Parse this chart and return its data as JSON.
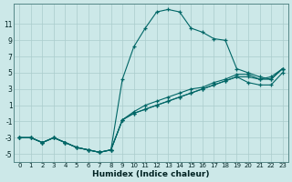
{
  "xlabel": "Humidex (Indice chaleur)",
  "bg_color": "#cce8e8",
  "grid_color": "#aacccc",
  "line_color": "#006666",
  "xlim": [
    -0.5,
    23.5
  ],
  "ylim": [
    -6,
    13.5
  ],
  "xticks": [
    0,
    1,
    2,
    3,
    4,
    5,
    6,
    7,
    8,
    9,
    10,
    11,
    12,
    13,
    14,
    15,
    16,
    17,
    18,
    19,
    20,
    21,
    22,
    23
  ],
  "yticks": [
    -5,
    -3,
    -1,
    1,
    3,
    5,
    7,
    9,
    11
  ],
  "line1": [
    [
      0,
      -3
    ],
    [
      1,
      -3
    ],
    [
      2,
      -3.6
    ],
    [
      3,
      -3
    ],
    [
      4,
      -3.6
    ],
    [
      5,
      -4.2
    ],
    [
      6,
      -4.5
    ],
    [
      7,
      -4.8
    ],
    [
      8,
      -4.5
    ],
    [
      9,
      4.2
    ],
    [
      10,
      8.2
    ],
    [
      11,
      10.5
    ],
    [
      12,
      12.5
    ],
    [
      13,
      12.8
    ],
    [
      14,
      12.5
    ],
    [
      15,
      10.5
    ],
    [
      16,
      10
    ],
    [
      17,
      9.2
    ],
    [
      18,
      9
    ],
    [
      19,
      5.5
    ],
    [
      20,
      5
    ],
    [
      21,
      4.5
    ],
    [
      22,
      4.2
    ],
    [
      23,
      5.5
    ]
  ],
  "line2": [
    [
      0,
      -3
    ],
    [
      1,
      -3
    ],
    [
      2,
      -3.6
    ],
    [
      3,
      -3
    ],
    [
      4,
      -3.6
    ],
    [
      5,
      -4.2
    ],
    [
      6,
      -4.5
    ],
    [
      7,
      -4.8
    ],
    [
      8,
      -4.5
    ],
    [
      9,
      -0.8
    ],
    [
      10,
      0.2
    ],
    [
      11,
      1
    ],
    [
      12,
      1.5
    ],
    [
      13,
      2
    ],
    [
      14,
      2.5
    ],
    [
      15,
      3
    ],
    [
      16,
      3.2
    ],
    [
      17,
      3.8
    ],
    [
      18,
      4.2
    ],
    [
      19,
      4.8
    ],
    [
      20,
      4.8
    ],
    [
      21,
      4.2
    ],
    [
      22,
      4.5
    ],
    [
      23,
      5.5
    ]
  ],
  "line3": [
    [
      0,
      -3
    ],
    [
      1,
      -3
    ],
    [
      2,
      -3.6
    ],
    [
      3,
      -3
    ],
    [
      4,
      -3.6
    ],
    [
      5,
      -4.2
    ],
    [
      6,
      -4.5
    ],
    [
      7,
      -4.8
    ],
    [
      8,
      -4.5
    ],
    [
      9,
      -0.8
    ],
    [
      10,
      0
    ],
    [
      11,
      0.5
    ],
    [
      12,
      1
    ],
    [
      13,
      1.5
    ],
    [
      14,
      2
    ],
    [
      15,
      2.5
    ],
    [
      16,
      3
    ],
    [
      17,
      3.5
    ],
    [
      18,
      4
    ],
    [
      19,
      4.5
    ],
    [
      20,
      3.8
    ],
    [
      21,
      3.5
    ],
    [
      22,
      3.5
    ],
    [
      23,
      5
    ]
  ],
  "line4": [
    [
      0,
      -3
    ],
    [
      1,
      -3
    ],
    [
      2,
      -3.6
    ],
    [
      3,
      -3
    ],
    [
      4,
      -3.6
    ],
    [
      5,
      -4.2
    ],
    [
      6,
      -4.5
    ],
    [
      7,
      -4.8
    ],
    [
      8,
      -4.5
    ],
    [
      9,
      -0.8
    ],
    [
      10,
      0
    ],
    [
      11,
      0.5
    ],
    [
      12,
      1
    ],
    [
      13,
      1.5
    ],
    [
      14,
      2
    ],
    [
      15,
      2.5
    ],
    [
      16,
      3
    ],
    [
      17,
      3.5
    ],
    [
      18,
      4
    ],
    [
      19,
      4.5
    ],
    [
      20,
      4.5
    ],
    [
      21,
      4.2
    ],
    [
      22,
      4.2
    ],
    [
      23,
      5.5
    ]
  ]
}
